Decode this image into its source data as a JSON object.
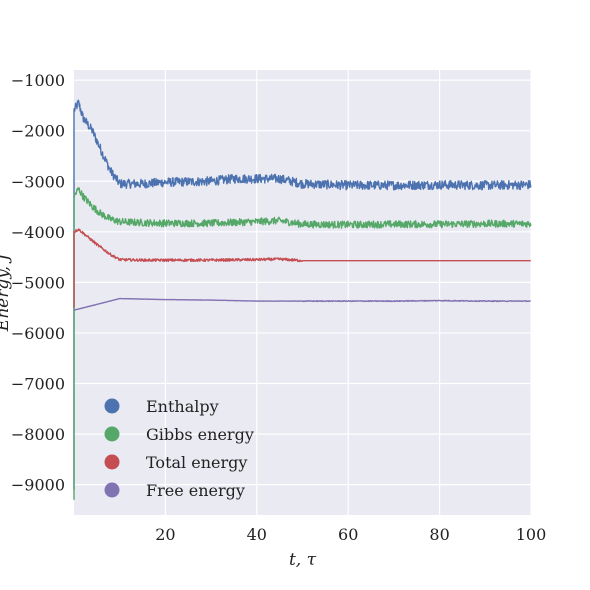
{
  "chart_data": {
    "type": "line",
    "title": "",
    "xlabel": "t, τ",
    "ylabel": "Energy, J",
    "xlim": [
      0,
      100
    ],
    "ylim": [
      -9600,
      -800
    ],
    "xticks": [
      20,
      40,
      60,
      80,
      100
    ],
    "yticks": [
      -1000,
      -2000,
      -3000,
      -4000,
      -5000,
      -6000,
      -7000,
      -8000,
      -9000
    ],
    "xtick_labels": [
      "20",
      "40",
      "60",
      "80",
      "100"
    ],
    "ytick_labels": [
      "−1000",
      "−2000",
      "−3000",
      "−4000",
      "−5000",
      "−6000",
      "−7000",
      "−8000",
      "−9000"
    ],
    "grid": true,
    "legend_position": "lower-left",
    "style": "seaborn-darkgrid",
    "background_color": "#EAEAF2",
    "series": [
      {
        "name": "Enthalpy",
        "color": "#4C72B0",
        "start_value": -9100,
        "x": [
          0,
          1,
          2,
          4,
          6,
          8,
          10,
          15,
          20,
          30,
          35,
          45,
          50,
          60,
          70,
          80,
          90,
          100
        ],
        "y": [
          -1600,
          -1450,
          -1750,
          -2000,
          -2400,
          -2800,
          -3050,
          -3050,
          -3020,
          -3000,
          -2950,
          -2950,
          -3050,
          -3080,
          -3080,
          -3070,
          -3080,
          -3070
        ],
        "noise": 90
      },
      {
        "name": "Gibbs energy",
        "color": "#55A868",
        "start_value": -9300,
        "x": [
          0,
          1,
          2,
          4,
          6,
          8,
          10,
          15,
          20,
          30,
          40,
          45,
          50,
          60,
          70,
          80,
          90,
          100
        ],
        "y": [
          -3300,
          -3150,
          -3300,
          -3500,
          -3650,
          -3750,
          -3800,
          -3820,
          -3830,
          -3830,
          -3800,
          -3780,
          -3850,
          -3860,
          -3850,
          -3850,
          -3840,
          -3840
        ],
        "noise": 70
      },
      {
        "name": "Total energy",
        "color": "#C44E52",
        "start_value": -5500,
        "x": [
          0,
          1,
          3,
          5,
          8,
          10,
          15,
          20,
          30,
          40,
          45,
          50,
          60,
          70,
          80,
          90,
          100
        ],
        "y": [
          -4000,
          -3950,
          -4100,
          -4250,
          -4450,
          -4550,
          -4560,
          -4560,
          -4560,
          -4550,
          -4540,
          -4570,
          -4570,
          -4570,
          -4570,
          -4570,
          -4570
        ],
        "noise_until": 50,
        "noise": 25
      },
      {
        "name": "Free energy",
        "color": "#8172B2",
        "start_value": -5550,
        "x": [
          0,
          10,
          20,
          30,
          40,
          50,
          60,
          70,
          80,
          90,
          100
        ],
        "y": [
          -5550,
          -5320,
          -5340,
          -5350,
          -5370,
          -5370,
          -5370,
          -5370,
          -5360,
          -5370,
          -5370
        ],
        "noise_from": 50,
        "noise": 8
      }
    ]
  }
}
